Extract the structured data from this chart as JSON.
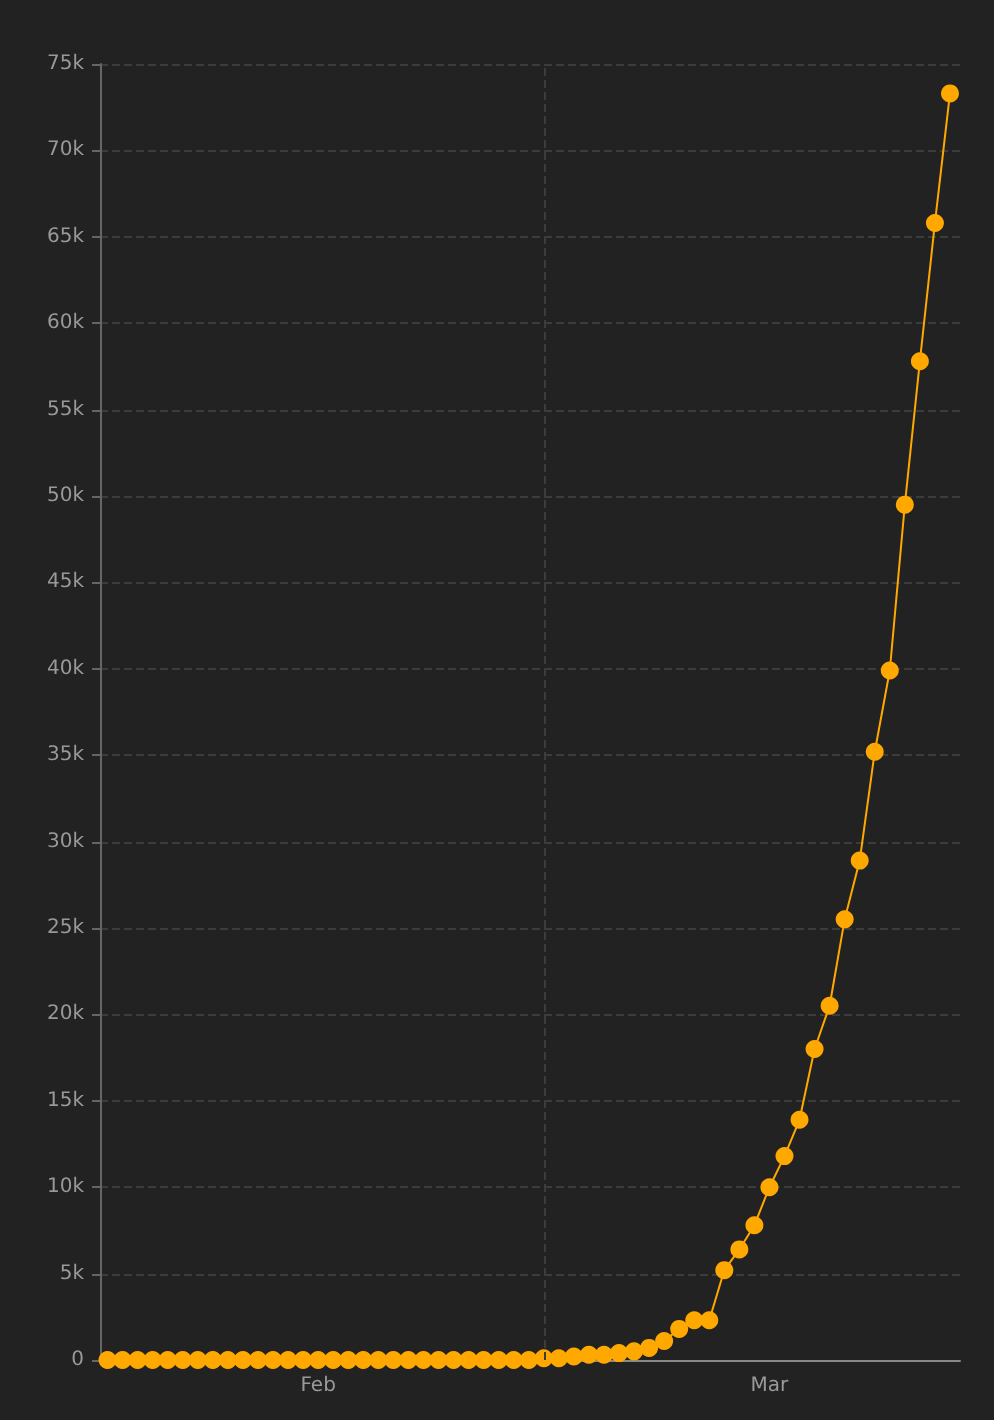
{
  "chart_data": {
    "type": "line",
    "x": [
      "--02-01",
      "--02-02",
      "--02-03",
      "--02-04",
      "--02-05",
      "--02-06",
      "--02-07",
      "--02-08",
      "--02-09",
      "--02-10",
      "--02-11",
      "--02-12",
      "--02-13",
      "--02-14",
      "--02-15",
      "--02-16",
      "--02-17",
      "--02-18",
      "--02-19",
      "--02-20",
      "--02-21",
      "--02-22",
      "--02-23",
      "--02-24",
      "--02-25",
      "--02-26",
      "--02-27",
      "--02-28",
      "--02-29",
      "--03-01",
      "--03-02",
      "--03-03",
      "--03-04",
      "--03-05",
      "--03-06",
      "--03-07",
      "--03-08",
      "--03-09",
      "--03-10",
      "--03-11",
      "--03-12",
      "--03-13",
      "--03-14",
      "--03-15",
      "--03-16",
      "--03-17",
      "--03-18",
      "--03-19",
      "--03-20",
      "--03-21",
      "--03-22",
      "--03-23",
      "--03-24",
      "--03-25",
      "--03-26",
      "--03-27",
      "--03-28"
    ],
    "series": [
      {
        "color": "#ffa800",
        "values": [
          0,
          0,
          0,
          0,
          0,
          0,
          0,
          0,
          0,
          0,
          0,
          0,
          0,
          0,
          0,
          0,
          0,
          0,
          0,
          0,
          0,
          0,
          0,
          0,
          0,
          0,
          0,
          0,
          0,
          100,
          100,
          200,
          300,
          300,
          400,
          500,
          700,
          1100,
          1800,
          2300,
          2300,
          5200,
          6400,
          7800,
          10000,
          11800,
          13900,
          18000,
          20500,
          25500,
          28900,
          35200,
          39900,
          49500,
          57800,
          65800,
          73300
        ]
      }
    ],
    "xlim": [
      "--01-31T12:00",
      "--03-28T16:00"
    ],
    "xticks": [
      {
        "value": "--02-15",
        "label": "Feb"
      },
      {
        "value": "--03-01",
        "label": null
      },
      {
        "value": "--03-16",
        "label": "Mar"
      }
    ],
    "ylim": [
      0,
      75000
    ],
    "yticks": [
      {
        "value": 0,
        "label": "0"
      },
      {
        "value": 5000,
        "label": "5k"
      },
      {
        "value": 10000,
        "label": "10k"
      },
      {
        "value": 15000,
        "label": "15k"
      },
      {
        "value": 20000,
        "label": "20k"
      },
      {
        "value": 25000,
        "label": "25k"
      },
      {
        "value": 30000,
        "label": "30k"
      },
      {
        "value": 35000,
        "label": "35k"
      },
      {
        "value": 40000,
        "label": "40k"
      },
      {
        "value": 45000,
        "label": "45k"
      },
      {
        "value": 50000,
        "label": "50k"
      },
      {
        "value": 55000,
        "label": "55k"
      },
      {
        "value": 60000,
        "label": "60k"
      },
      {
        "value": 65000,
        "label": "65k"
      },
      {
        "value": 70000,
        "label": "70k"
      },
      {
        "value": 75000,
        "label": "75k"
      }
    ],
    "grid": true,
    "marker": "circle",
    "line_style": "solid"
  }
}
